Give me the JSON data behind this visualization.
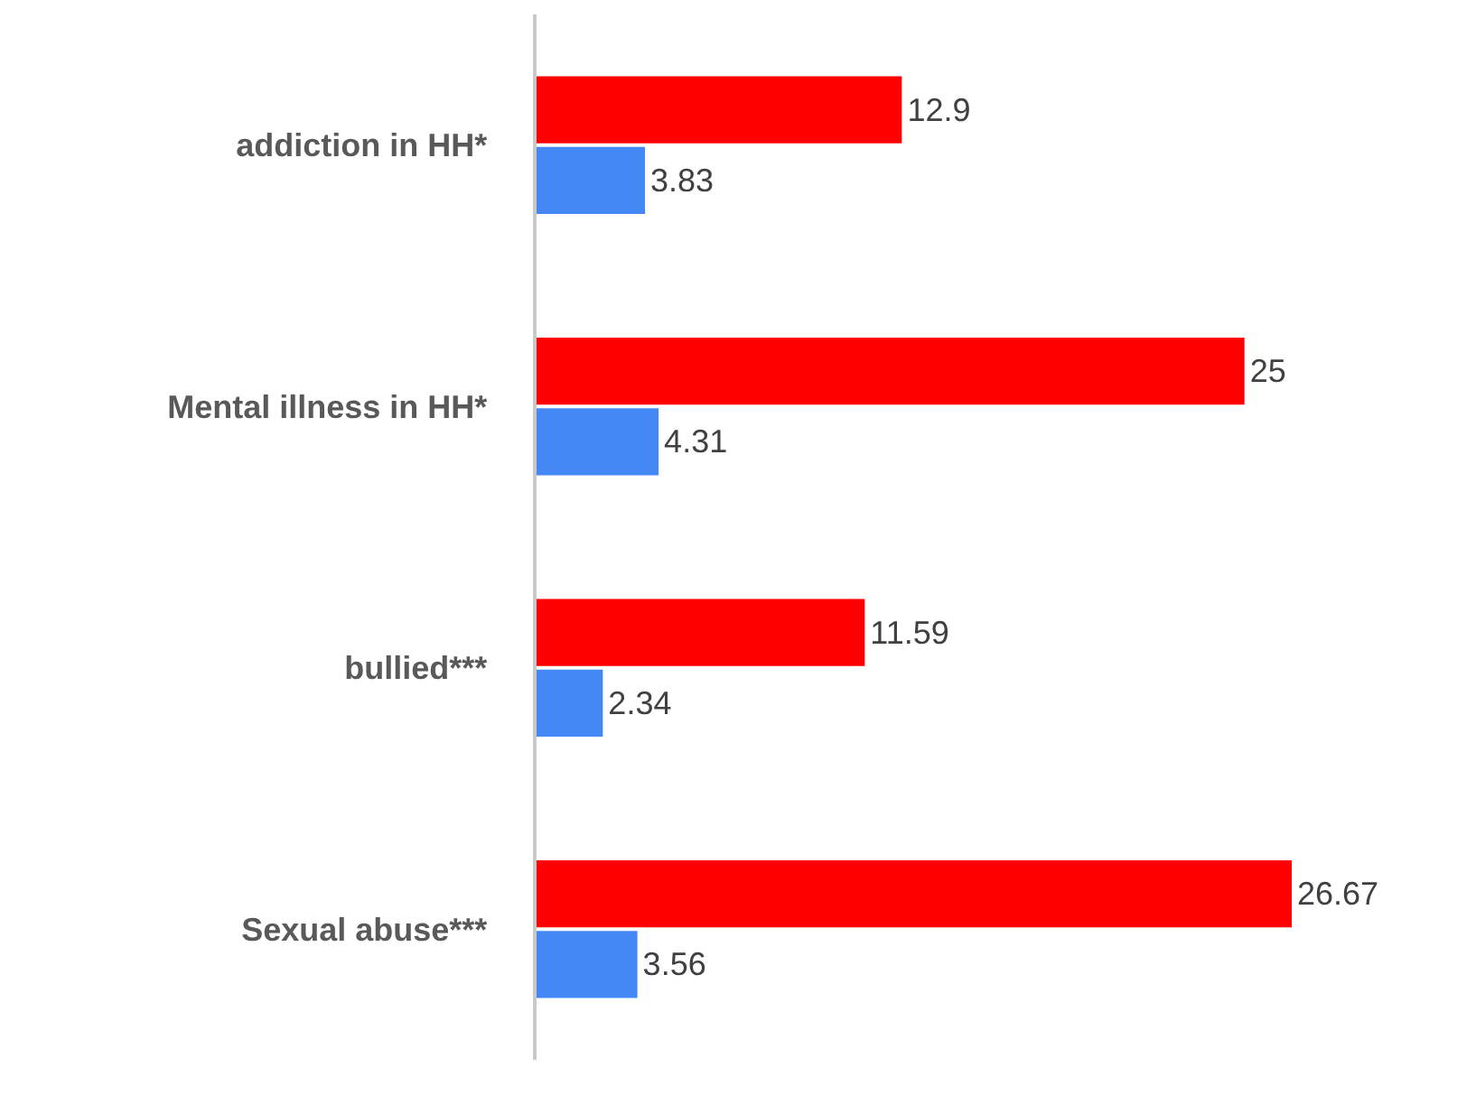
{
  "chart_data": {
    "type": "bar",
    "orientation": "horizontal",
    "categories": [
      "addiction in HH*",
      "Mental illness in HH*",
      "bullied***",
      "Sexual abuse***"
    ],
    "series": [
      {
        "color": "#ff0000",
        "values": [
          12.9,
          25,
          11.59,
          26.67
        ]
      },
      {
        "color": "#4488f5",
        "values": [
          3.83,
          4.31,
          2.34,
          3.56
        ]
      }
    ],
    "data_labels": true,
    "tick_labels": "y"
  }
}
